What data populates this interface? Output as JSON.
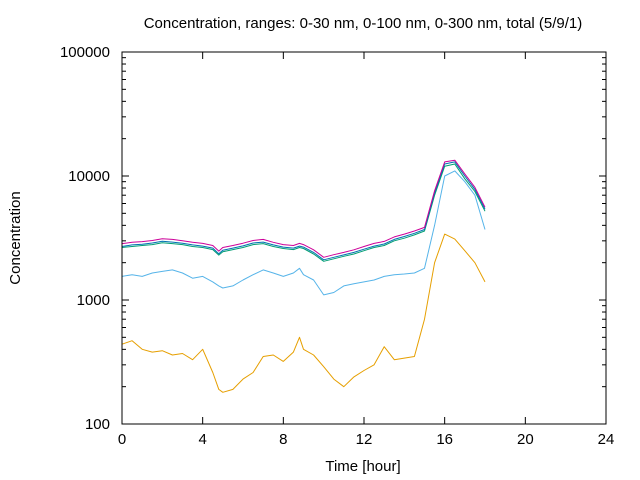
{
  "chart_data": {
    "type": "line",
    "title": "Concentration, ranges: 0-30 nm, 0-100 nm, 0-300 nm, total (5/9/1)",
    "xlabel": "Time [hour]",
    "ylabel": "Concentration",
    "xlim": [
      0,
      24
    ],
    "ylim": [
      100,
      100000
    ],
    "yscale": "log",
    "xticks": [
      0,
      4,
      8,
      12,
      16,
      20,
      24
    ],
    "xtick_labels": [
      "0",
      "4",
      "8",
      "12",
      "16",
      "20",
      "24"
    ],
    "yticks": [
      100,
      1000,
      10000,
      100000
    ],
    "ytick_labels": [
      "100",
      "1000",
      "10000",
      "100000"
    ],
    "grid": false,
    "x": [
      0,
      0.5,
      1,
      1.5,
      2,
      2.5,
      3,
      3.5,
      4,
      4.5,
      4.8,
      5,
      5.5,
      6,
      6.5,
      7,
      7.5,
      8,
      8.5,
      8.8,
      9,
      9.5,
      10,
      10.5,
      11,
      11.5,
      12,
      12.5,
      13,
      13.5,
      14,
      14.5,
      15,
      15.5,
      16,
      16.5,
      17,
      17.5,
      18
    ],
    "series": [
      {
        "color": "#e69f00",
        "values": [
          440,
          470,
          400,
          380,
          390,
          360,
          370,
          330,
          400,
          260,
          190,
          180,
          190,
          230,
          260,
          350,
          360,
          320,
          380,
          500,
          400,
          360,
          290,
          230,
          200,
          240,
          270,
          300,
          420,
          330,
          340,
          350,
          700,
          2000,
          3400,
          3100,
          2500,
          2000,
          1400
        ]
      },
      {
        "color": "#56b4e9",
        "values": [
          1550,
          1600,
          1550,
          1650,
          1700,
          1750,
          1650,
          1500,
          1550,
          1400,
          1300,
          1250,
          1300,
          1450,
          1600,
          1750,
          1650,
          1550,
          1650,
          1800,
          1600,
          1450,
          1100,
          1150,
          1300,
          1350,
          1400,
          1450,
          1550,
          1600,
          1620,
          1650,
          1800,
          4000,
          10000,
          11000,
          9000,
          7000,
          3700
        ]
      },
      {
        "color": "#009e73",
        "values": [
          2650,
          2700,
          2750,
          2800,
          2900,
          2850,
          2800,
          2700,
          2650,
          2550,
          2300,
          2450,
          2550,
          2650,
          2800,
          2850,
          2700,
          2600,
          2550,
          2650,
          2600,
          2350,
          2050,
          2150,
          2250,
          2350,
          2500,
          2650,
          2750,
          3000,
          3150,
          3350,
          3600,
          7000,
          12000,
          12500,
          9500,
          7500,
          5200
        ]
      },
      {
        "color": "#0072b2",
        "values": [
          2700,
          2780,
          2820,
          2880,
          2980,
          2930,
          2870,
          2780,
          2720,
          2620,
          2360,
          2520,
          2620,
          2730,
          2880,
          2930,
          2780,
          2670,
          2620,
          2720,
          2670,
          2420,
          2110,
          2210,
          2310,
          2420,
          2570,
          2720,
          2830,
          3080,
          3250,
          3450,
          3700,
          7300,
          12500,
          13000,
          10000,
          7800,
          5400
        ]
      },
      {
        "color": "#cc0099",
        "values": [
          2850,
          2920,
          2960,
          3020,
          3120,
          3080,
          3000,
          2920,
          2860,
          2750,
          2480,
          2650,
          2750,
          2870,
          3020,
          3080,
          2920,
          2800,
          2750,
          2860,
          2800,
          2540,
          2210,
          2320,
          2420,
          2540,
          2700,
          2860,
          2970,
          3230,
          3400,
          3600,
          3850,
          7600,
          13000,
          13400,
          10400,
          8100,
          5600
        ]
      }
    ]
  }
}
